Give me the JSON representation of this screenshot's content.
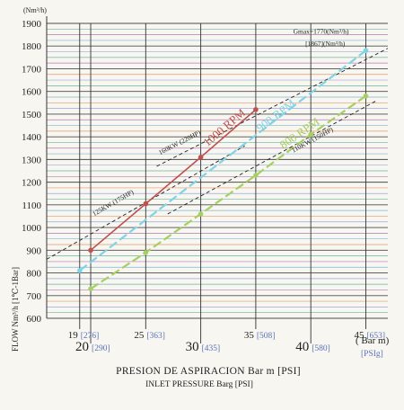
{
  "chart_data": {
    "type": "line",
    "y_unit": "(Nm³/h)",
    "ylim": [
      600,
      1900
    ],
    "y_ticks": [
      600,
      700,
      800,
      900,
      1000,
      1100,
      1200,
      1300,
      1400,
      1500,
      1600,
      1700,
      1800,
      1900
    ],
    "x_ticks": [
      {
        "x": 19,
        "bar": "19",
        "psi": "[276]",
        "big": false
      },
      {
        "x": 20,
        "bar": "20",
        "psi": "[290]",
        "big": true
      },
      {
        "x": 25,
        "bar": "25",
        "psi": "[363]",
        "big": false
      },
      {
        "x": 30,
        "bar": "30",
        "psi": "[435]",
        "big": true
      },
      {
        "x": 35,
        "bar": "35",
        "psi": "[508]",
        "big": false
      },
      {
        "x": 40,
        "bar": "40",
        "psi": "[580]",
        "big": true
      },
      {
        "x": 45,
        "bar": "45",
        "psi": "[653]",
        "big": false
      }
    ],
    "x_unit_bar": "( Bar m)",
    "x_unit_psi": "[PSIg]",
    "xlabel": "PRESION DE ASPIRACION Bar m [PSI]",
    "xlabel2": "INLET PRESSURE Barg [PSI]",
    "ylabel": "FLOW Nm³/h [1℃-1Bar]",
    "series": [
      {
        "name": "1000 RPM",
        "color": "#c0504d",
        "x": [
          20,
          25,
          30,
          35
        ],
        "y": [
          900,
          1105,
          1310,
          1520
        ]
      },
      {
        "name": "900 RPM",
        "color": "#7fd3e6",
        "x": [
          19,
          45
        ],
        "y": [
          810,
          1780
        ]
      },
      {
        "name": "800 RPM",
        "color": "#a6cf62",
        "x": [
          20,
          25,
          30,
          35,
          40,
          45
        ],
        "y": [
          730,
          890,
          1060,
          1230,
          1410,
          1580
        ]
      }
    ],
    "power_lines": [
      {
        "label": "160KW (220HP)",
        "x": [
          26,
          47
        ],
        "y": [
          1270,
          1790
        ]
      },
      {
        "label": "125KW (175HP)",
        "x": [
          16,
          34
        ],
        "y": [
          860,
          1360
        ]
      },
      {
        "label": "110KW (150HP)",
        "x": [
          27,
          46
        ],
        "y": [
          1060,
          1560
        ]
      }
    ],
    "annotations": [
      {
        "text": "Gmax=1770(Nm³/h)",
        "x": 38.4,
        "y": 1855
      },
      {
        "text": "[1867](Nm³/h)",
        "x": 39.5,
        "y": 1800
      }
    ]
  }
}
